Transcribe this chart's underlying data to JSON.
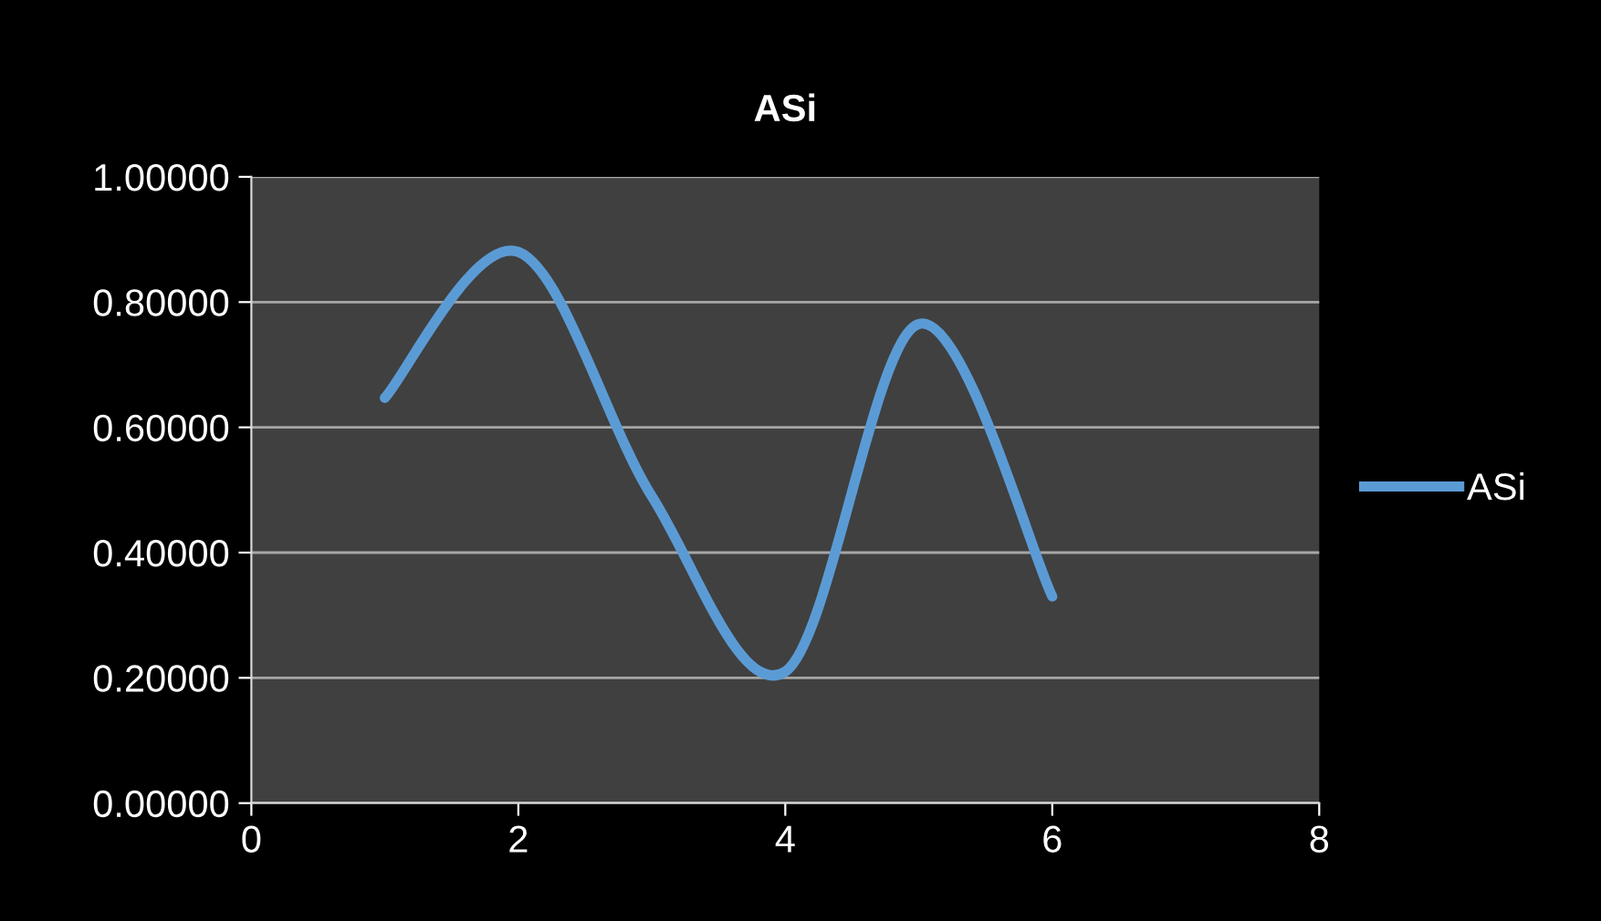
{
  "chart_data": {
    "type": "line",
    "title": "ASi",
    "x": [
      1,
      2,
      3,
      4,
      5,
      6
    ],
    "series": [
      {
        "name": "ASi",
        "color": "#5b9bd5",
        "values": [
          0.647,
          0.88,
          0.49,
          0.21,
          0.765,
          0.33
        ]
      }
    ],
    "xlim": [
      0,
      8
    ],
    "xticks": [
      0,
      2,
      4,
      6,
      8
    ],
    "ylim": [
      0,
      1
    ],
    "yticks": [
      {
        "value": 0,
        "label": "0.00000"
      },
      {
        "value": 0.2,
        "label": "0.20000"
      },
      {
        "value": 0.4,
        "label": "0.40000"
      },
      {
        "value": 0.6,
        "label": "0.60000"
      },
      {
        "value": 0.8,
        "label": "0.80000"
      },
      {
        "value": 1,
        "label": "1.00000"
      }
    ],
    "grid": "y",
    "legend": "right",
    "marker": "none",
    "line_style": "solid"
  }
}
